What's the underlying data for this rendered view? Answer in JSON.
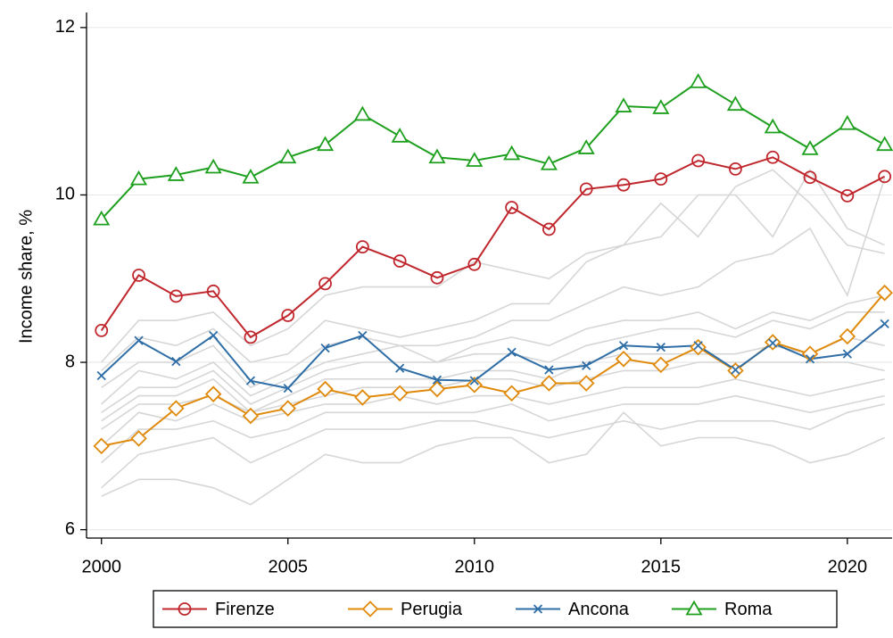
{
  "chart_data": {
    "type": "line",
    "y_label": "Income share, %",
    "x": [
      2000,
      2001,
      2002,
      2003,
      2004,
      2005,
      2006,
      2007,
      2008,
      2009,
      2010,
      2011,
      2012,
      2013,
      2014,
      2015,
      2016,
      2017,
      2018,
      2019,
      2020,
      2021
    ],
    "xlim": [
      1999.6,
      2021.2
    ],
    "xticks": [
      2000,
      2005,
      2010,
      2015,
      2020
    ],
    "ylim": [
      5.9,
      12.18
    ],
    "yticks": [
      6,
      8,
      10,
      12
    ],
    "grid": true,
    "legend_position": "bottom",
    "background_lines": {
      "color": "#d6d6d6",
      "series": [
        [
          8.0,
          8.5,
          8.5,
          8.6,
          8.2,
          8.4,
          8.8,
          8.9,
          8.9,
          8.9,
          9.2,
          9.1,
          9.0,
          9.3,
          9.4,
          9.9,
          9.5,
          10.1,
          10.3,
          9.9,
          9.4,
          9.3
        ],
        [
          7.9,
          8.3,
          8.2,
          8.4,
          8.0,
          8.1,
          8.5,
          8.4,
          8.3,
          8.4,
          8.5,
          8.7,
          8.7,
          9.2,
          9.4,
          9.5,
          10.0,
          10.0,
          9.5,
          10.3,
          9.6,
          9.4
        ],
        [
          7.7,
          8.0,
          8.0,
          8.2,
          7.7,
          7.9,
          8.2,
          8.3,
          8.2,
          8.2,
          8.3,
          8.5,
          8.5,
          8.7,
          8.9,
          8.8,
          8.9,
          9.2,
          9.3,
          9.6,
          8.8,
          10.2
        ],
        [
          7.5,
          7.9,
          7.8,
          8.0,
          7.6,
          7.8,
          8.0,
          8.1,
          8.2,
          8.0,
          8.2,
          8.3,
          8.2,
          8.4,
          8.5,
          8.5,
          8.6,
          8.4,
          8.6,
          8.5,
          8.7,
          8.8
        ],
        [
          7.4,
          7.7,
          7.7,
          7.9,
          7.5,
          7.7,
          7.9,
          8.0,
          8.0,
          8.0,
          8.1,
          8.1,
          8.0,
          8.2,
          8.3,
          8.4,
          8.4,
          8.3,
          8.5,
          8.4,
          8.6,
          8.6
        ],
        [
          7.3,
          7.6,
          7.6,
          7.8,
          7.4,
          7.6,
          7.8,
          7.8,
          7.8,
          7.8,
          7.9,
          7.9,
          7.8,
          8.0,
          8.1,
          8.1,
          8.1,
          8.1,
          8.2,
          8.1,
          8.3,
          8.2
        ],
        [
          7.2,
          7.5,
          7.5,
          7.6,
          7.4,
          7.5,
          7.6,
          7.7,
          7.7,
          7.7,
          7.8,
          7.8,
          7.7,
          7.8,
          7.9,
          7.9,
          8.0,
          8.0,
          8.0,
          8.0,
          8.0,
          7.9
        ],
        [
          7.0,
          7.4,
          7.3,
          7.5,
          7.3,
          7.4,
          7.5,
          7.5,
          7.6,
          7.5,
          7.6,
          7.6,
          7.5,
          7.6,
          7.7,
          7.7,
          7.7,
          7.8,
          7.7,
          7.6,
          7.7,
          7.8
        ],
        [
          6.8,
          7.2,
          7.2,
          7.3,
          7.1,
          7.2,
          7.4,
          7.4,
          7.4,
          7.4,
          7.4,
          7.5,
          7.3,
          7.4,
          7.5,
          7.5,
          7.5,
          7.6,
          7.5,
          7.4,
          7.5,
          7.6
        ],
        [
          6.5,
          6.9,
          7.0,
          7.1,
          6.8,
          7.0,
          7.2,
          7.2,
          7.2,
          7.3,
          7.3,
          7.2,
          7.1,
          7.2,
          7.3,
          7.2,
          7.3,
          7.3,
          7.3,
          7.2,
          7.4,
          7.5
        ],
        [
          6.4,
          6.6,
          6.6,
          6.5,
          6.3,
          6.6,
          6.9,
          6.8,
          6.8,
          7.0,
          7.1,
          7.1,
          6.8,
          6.9,
          7.4,
          7.0,
          7.1,
          7.1,
          7.0,
          6.8,
          6.9,
          7.1
        ]
      ]
    },
    "series": [
      {
        "name": "Firenze",
        "color": "#c0272d",
        "marker": "circle",
        "values": [
          8.38,
          9.04,
          8.79,
          8.85,
          8.3,
          8.56,
          8.94,
          9.38,
          9.21,
          9.01,
          9.17,
          9.85,
          9.59,
          10.07,
          10.12,
          10.19,
          10.41,
          10.31,
          10.45,
          10.21,
          9.99,
          10.22
        ]
      },
      {
        "name": "Perugia",
        "color": "#e08a0b",
        "marker": "diamond",
        "values": [
          7.0,
          7.09,
          7.45,
          7.62,
          7.36,
          7.45,
          7.68,
          7.58,
          7.63,
          7.68,
          7.73,
          7.63,
          7.75,
          7.75,
          8.04,
          7.97,
          8.18,
          7.9,
          8.24,
          8.1,
          8.31,
          8.83
        ]
      },
      {
        "name": "Ancona",
        "color": "#2f6ea6",
        "marker": "x",
        "values": [
          7.84,
          8.26,
          8.01,
          8.32,
          7.78,
          7.69,
          8.17,
          8.32,
          7.93,
          7.79,
          7.78,
          8.12,
          7.91,
          7.96,
          8.2,
          8.18,
          8.2,
          7.91,
          8.23,
          8.04,
          8.1,
          8.46
        ]
      },
      {
        "name": "Roma",
        "color": "#1ea01e",
        "marker": "triangle",
        "values": [
          9.71,
          10.19,
          10.24,
          10.33,
          10.21,
          10.45,
          10.6,
          10.96,
          10.7,
          10.45,
          10.41,
          10.49,
          10.37,
          10.56,
          11.06,
          11.04,
          11.35,
          11.08,
          10.81,
          10.55,
          10.85,
          10.6
        ]
      }
    ]
  }
}
